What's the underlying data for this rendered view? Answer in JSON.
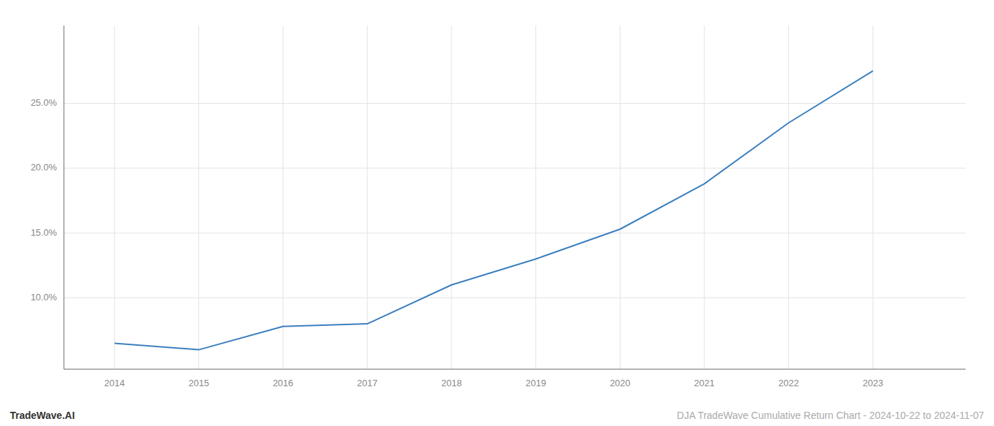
{
  "chart_data": {
    "type": "line",
    "x": [
      2014,
      2015,
      2016,
      2017,
      2018,
      2019,
      2020,
      2021,
      2022,
      2023
    ],
    "values": [
      6.5,
      6.0,
      7.8,
      8.0,
      11.0,
      13.0,
      15.3,
      18.8,
      23.5,
      27.5
    ],
    "color": "#3a7ebf",
    "xlim": [
      2013.4,
      2024.1
    ],
    "xticks": [
      2014,
      2015,
      2016,
      2017,
      2018,
      2019,
      2020,
      2021,
      2022,
      2023
    ],
    "ylim": [
      4.5,
      31.0
    ],
    "yticks": [
      {
        "value": 10.0,
        "label": "10.0%"
      },
      {
        "value": 15.0,
        "label": "15.0%"
      },
      {
        "value": 20.0,
        "label": "20.0%"
      },
      {
        "value": 25.0,
        "label": "25.0%"
      }
    ],
    "grid": true,
    "annotations": [
      "TradeWave.AI",
      "DJA TradeWave Cumulative Return Chart - 2024-10-22 to 2024-11-07"
    ]
  }
}
